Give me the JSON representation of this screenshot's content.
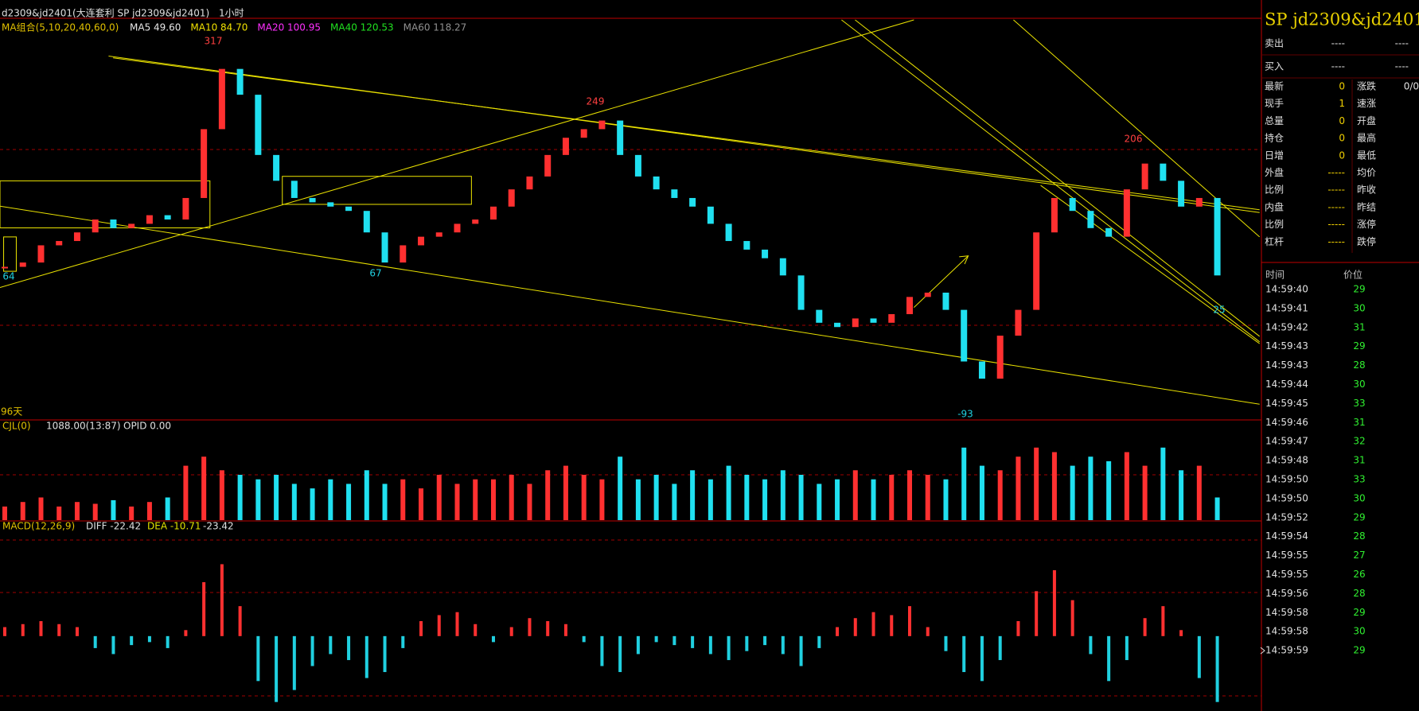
{
  "header": {
    "symbol": "d2309&jd2401(大连套利 SP jd2309&jd2401)",
    "timeframe": "1小时"
  },
  "ma_legend": {
    "title": "MA组合(5,10,20,40,60,0)",
    "items": [
      {
        "label": "MA5 49.60",
        "color": "#e8e8e8"
      },
      {
        "label": "MA10 84.70",
        "color": "#f0e000"
      },
      {
        "label": "MA20 100.95",
        "color": "#ff30ff"
      },
      {
        "label": "MA40 120.53",
        "color": "#20e020"
      },
      {
        "label": "MA60 118.27",
        "color": "#909090"
      }
    ]
  },
  "price_chart": {
    "type": "candlestick",
    "ylim": [
      -107,
      357
    ],
    "up_color": "#ff3030",
    "down_color": "#20e0f0",
    "values": [
      70,
      75,
      95,
      100,
      110,
      125,
      115,
      120,
      130,
      125,
      150,
      230,
      300,
      270,
      200,
      170,
      150,
      145,
      140,
      135,
      110,
      75,
      95,
      105,
      110,
      120,
      125,
      140,
      160,
      175,
      200,
      220,
      230,
      240,
      200,
      175,
      160,
      150,
      140,
      120,
      100,
      90,
      80,
      60,
      20,
      5,
      0,
      10,
      5,
      15,
      35,
      40,
      20,
      -40,
      -60,
      -10,
      20,
      110,
      150,
      135,
      115,
      105,
      160,
      190,
      170,
      140,
      150,
      60
    ],
    "markers": [
      317,
      249,
      206,
      67,
      -93,
      64,
      25
    ],
    "period_label": "96天"
  },
  "volume": {
    "title": "CJL(0)",
    "value": "1088.00(13:87)",
    "opid": "OPID 0.00",
    "ylim": [
      0,
      100
    ],
    "values": [
      15,
      20,
      25,
      15,
      20,
      18,
      22,
      15,
      20,
      25,
      60,
      70,
      55,
      50,
      45,
      50,
      40,
      35,
      45,
      40,
      55,
      40,
      45,
      35,
      50,
      40,
      45,
      45,
      50,
      40,
      55,
      60,
      50,
      45,
      70,
      45,
      50,
      40,
      55,
      45,
      60,
      50,
      45,
      55,
      50,
      40,
      45,
      55,
      45,
      50,
      55,
      50,
      45,
      80,
      60,
      55,
      70,
      80,
      75,
      60,
      70,
      65,
      75,
      60,
      80,
      55,
      60,
      25
    ]
  },
  "macd": {
    "title": "MACD(12,26,9)",
    "diff": "DIFF -22.42",
    "dea": "DEA -10.71",
    "macd": "-23.42",
    "ylim": [
      -25,
      35
    ],
    "up_color": "#ff3030",
    "down_color": "#20d0e0",
    "values": [
      3,
      4,
      5,
      4,
      3,
      -4,
      -6,
      -3,
      -2,
      -4,
      2,
      18,
      24,
      10,
      -15,
      -22,
      -18,
      -10,
      -6,
      -8,
      -14,
      -12,
      -4,
      5,
      7,
      8,
      4,
      -2,
      3,
      6,
      5,
      4,
      -2,
      -10,
      -12,
      -6,
      -2,
      -3,
      -4,
      -6,
      -8,
      -5,
      -3,
      -6,
      -10,
      -4,
      3,
      6,
      8,
      7,
      10,
      3,
      -5,
      -12,
      -15,
      -8,
      5,
      15,
      22,
      12,
      -6,
      -15,
      -8,
      6,
      10,
      2,
      -14,
      -22
    ]
  },
  "quote_panel": {
    "title": "SP  jd2309&jd2401",
    "sell": [
      "卖出",
      "----",
      "----"
    ],
    "buy": [
      "买入",
      "----",
      "----"
    ],
    "rows": [
      [
        "最新",
        "0",
        "涨跌",
        "0/0"
      ],
      [
        "现手",
        "1",
        "速涨",
        ""
      ],
      [
        "总量",
        "0",
        "开盘",
        ""
      ],
      [
        "持仓",
        "0",
        "最高",
        ""
      ],
      [
        "日增",
        "0",
        "最低",
        ""
      ],
      [
        "外盘",
        "-----",
        "均价",
        ""
      ],
      [
        "比例",
        "-----",
        "昨收",
        ""
      ],
      [
        "内盘",
        "-----",
        "昨结",
        ""
      ],
      [
        "比例",
        "-----",
        "涨停",
        ""
      ],
      [
        "杠杆",
        "-----",
        "跌停",
        ""
      ]
    ]
  },
  "trades": {
    "headers": [
      "时间",
      "价位"
    ],
    "rows": [
      [
        "14:59:40",
        29
      ],
      [
        "14:59:41",
        30
      ],
      [
        "14:59:42",
        31
      ],
      [
        "14:59:43",
        29
      ],
      [
        "14:59:43",
        28
      ],
      [
        "14:59:44",
        30
      ],
      [
        "14:59:45",
        33
      ],
      [
        "14:59:46",
        31
      ],
      [
        "14:59:47",
        32
      ],
      [
        "14:59:48",
        31
      ],
      [
        "14:59:50",
        33
      ],
      [
        "14:59:50",
        30
      ],
      [
        "14:59:52",
        29
      ],
      [
        "14:59:54",
        28
      ],
      [
        "14:59:55",
        27
      ],
      [
        "14:59:55",
        26
      ],
      [
        "14:59:56",
        28
      ],
      [
        "14:59:58",
        29
      ],
      [
        "14:59:58",
        30
      ],
      [
        "14:59:59",
        29
      ]
    ]
  }
}
